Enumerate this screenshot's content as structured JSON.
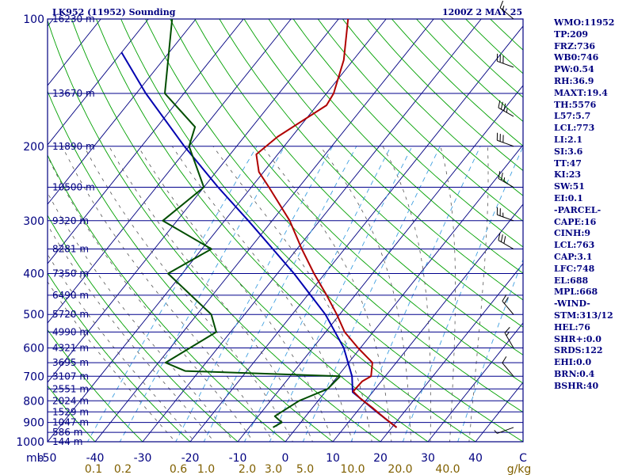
{
  "header": {
    "station": "LK952 (11952) Sounding",
    "time": "1200Z  2 MAY 25"
  },
  "stats": [
    "WMO:11952",
    "TP:209",
    "FRZ:736",
    "WB0:746",
    "PW:0.54",
    "RH:36.9",
    "MAXT:19.4",
    "TH:5576",
    "L57:5.7",
    "LCL:773",
    "LI:2.1",
    "SI:3.6",
    "TT:47",
    "KI:23",
    "SW:51",
    "EI:0.1",
    "-PARCEL-",
    "CAPE:16",
    "CINH:9",
    "LCL:763",
    "CAP:3.1",
    "LFC:748",
    "EL:688",
    "MPL:668",
    "-WIND-",
    "STM:313/12",
    "HEL:76",
    "SHR+:0.0",
    "SRDS:122",
    "EHI:0.0",
    "BRN:0.4",
    "BSHR:40"
  ],
  "chart_data": {
    "type": "skew-t log-p sounding",
    "title": "LK952 (11952) Sounding",
    "time": "1200Z  2 MAY 25",
    "xlabel": "°C",
    "ylabel": "mb",
    "xlim": [
      -50,
      50
    ],
    "ylim": [
      1000,
      100
    ],
    "y_scale": "log",
    "colors": {
      "frame": "#000080",
      "isobar": "#00008b",
      "isotherm": "#000080",
      "dry_adiabat": "#00a000",
      "moist_adiabat": "#555555",
      "mixing_ratio": "#40a0e0",
      "temperature": "#b00000",
      "dewpoint": "#004d00",
      "parcel": "#0000b0",
      "wind": "#000000",
      "mixing_ratio_labels": "#806000"
    },
    "pressure_ticks": [
      100,
      200,
      300,
      400,
      500,
      600,
      700,
      800,
      900,
      1000
    ],
    "temperature_ticks": [
      "-50",
      "-40",
      "-30",
      "-20",
      "-10",
      "0",
      "10",
      "20",
      "30",
      "40",
      "C"
    ],
    "height_labels": [
      {
        "p": 100,
        "text": "16230 m"
      },
      {
        "p": 150,
        "text": "13670 m"
      },
      {
        "p": 200,
        "text": "11890 m"
      },
      {
        "p": 250,
        "text": "10500 m"
      },
      {
        "p": 300,
        "text": "9320 m"
      },
      {
        "p": 350,
        "text": "8281 m"
      },
      {
        "p": 400,
        "text": "7350 m"
      },
      {
        "p": 450,
        "text": "6490 m"
      },
      {
        "p": 500,
        "text": "5720 m"
      },
      {
        "p": 550,
        "text": "4990 m"
      },
      {
        "p": 600,
        "text": "4321 m"
      },
      {
        "p": 650,
        "text": "3695 m"
      },
      {
        "p": 700,
        "text": "3107 m"
      },
      {
        "p": 750,
        "text": "2551 m"
      },
      {
        "p": 800,
        "text": "2024 m"
      },
      {
        "p": 850,
        "text": "1529 m"
      },
      {
        "p": 900,
        "text": "1047 m"
      },
      {
        "p": 950,
        "text": "586 m"
      },
      {
        "p": 1000,
        "text": "144 m"
      }
    ],
    "mixing_ratio_labels": [
      "0.1",
      "0.2",
      "0.6",
      "1.0",
      "2.0",
      "3.0",
      "5.0",
      "10.0",
      "20.0",
      "40.0",
      "g/kg"
    ],
    "temperature_profile": [
      {
        "p": 925,
        "t": 21.0
      },
      {
        "p": 880,
        "t": 17.0
      },
      {
        "p": 830,
        "t": 12.5
      },
      {
        "p": 790,
        "t": 8.5
      },
      {
        "p": 760,
        "t": 5.8
      },
      {
        "p": 720,
        "t": 6.0
      },
      {
        "p": 700,
        "t": 7.0
      },
      {
        "p": 650,
        "t": 5.0
      },
      {
        "p": 600,
        "t": -0.5
      },
      {
        "p": 550,
        "t": -6.0
      },
      {
        "p": 500,
        "t": -10.6
      },
      {
        "p": 450,
        "t": -16.0
      },
      {
        "p": 400,
        "t": -22.3
      },
      {
        "p": 350,
        "t": -29.0
      },
      {
        "p": 300,
        "t": -36.3
      },
      {
        "p": 250,
        "t": -46.3
      },
      {
        "p": 230,
        "t": -51.0
      },
      {
        "p": 209,
        "t": -54.5
      },
      {
        "p": 190,
        "t": -53.0
      },
      {
        "p": 160,
        "t": -48.0
      },
      {
        "p": 150,
        "t": -48.5
      },
      {
        "p": 125,
        "t": -52.0
      },
      {
        "p": 100,
        "t": -58.0
      }
    ],
    "dewpoint_profile": [
      {
        "p": 925,
        "td": -5.0
      },
      {
        "p": 900,
        "td": -4.0
      },
      {
        "p": 870,
        "td": -6.5
      },
      {
        "p": 800,
        "td": -4.0
      },
      {
        "p": 750,
        "td": 0.0
      },
      {
        "p": 700,
        "td": 0.5
      },
      {
        "p": 680,
        "td": -33.0
      },
      {
        "p": 650,
        "td": -38.5
      },
      {
        "p": 550,
        "td": -33.0
      },
      {
        "p": 500,
        "td": -37.0
      },
      {
        "p": 400,
        "td": -53.0
      },
      {
        "p": 350,
        "td": -48.0
      },
      {
        "p": 300,
        "td": -63.0
      },
      {
        "p": 250,
        "td": -60.0
      },
      {
        "p": 200,
        "td": -70.0
      },
      {
        "p": 180,
        "td": -72.0
      },
      {
        "p": 150,
        "td": -84.0
      },
      {
        "p": 100,
        "td": -95.0
      }
    ],
    "parcel_profile": [
      {
        "p": 925,
        "t": 21.0
      },
      {
        "p": 850,
        "t": 14.2
      },
      {
        "p": 763,
        "t": 5.8
      },
      {
        "p": 700,
        "t": 3.0
      },
      {
        "p": 600,
        "t": -3.5
      },
      {
        "p": 500,
        "t": -13.0
      },
      {
        "p": 400,
        "t": -26.5
      },
      {
        "p": 300,
        "t": -45.0
      },
      {
        "p": 250,
        "t": -57.0
      },
      {
        "p": 200,
        "t": -71.0
      },
      {
        "p": 150,
        "t": -88.0
      },
      {
        "p": 120,
        "t": -100.0
      }
    ],
    "wind_profile": [
      {
        "p": 925,
        "dir": 250,
        "spd": 5
      },
      {
        "p": 700,
        "dir": 320,
        "spd": 10
      },
      {
        "p": 600,
        "dir": 330,
        "spd": 15
      },
      {
        "p": 500,
        "dir": 320,
        "spd": 20
      },
      {
        "p": 350,
        "dir": 300,
        "spd": 30
      },
      {
        "p": 300,
        "dir": 290,
        "spd": 25
      },
      {
        "p": 250,
        "dir": 300,
        "spd": 25
      },
      {
        "p": 200,
        "dir": 290,
        "spd": 30
      },
      {
        "p": 170,
        "dir": 300,
        "spd": 35
      },
      {
        "p": 130,
        "dir": 290,
        "spd": 30
      },
      {
        "p": 100,
        "dir": 310,
        "spd": 15
      }
    ]
  }
}
